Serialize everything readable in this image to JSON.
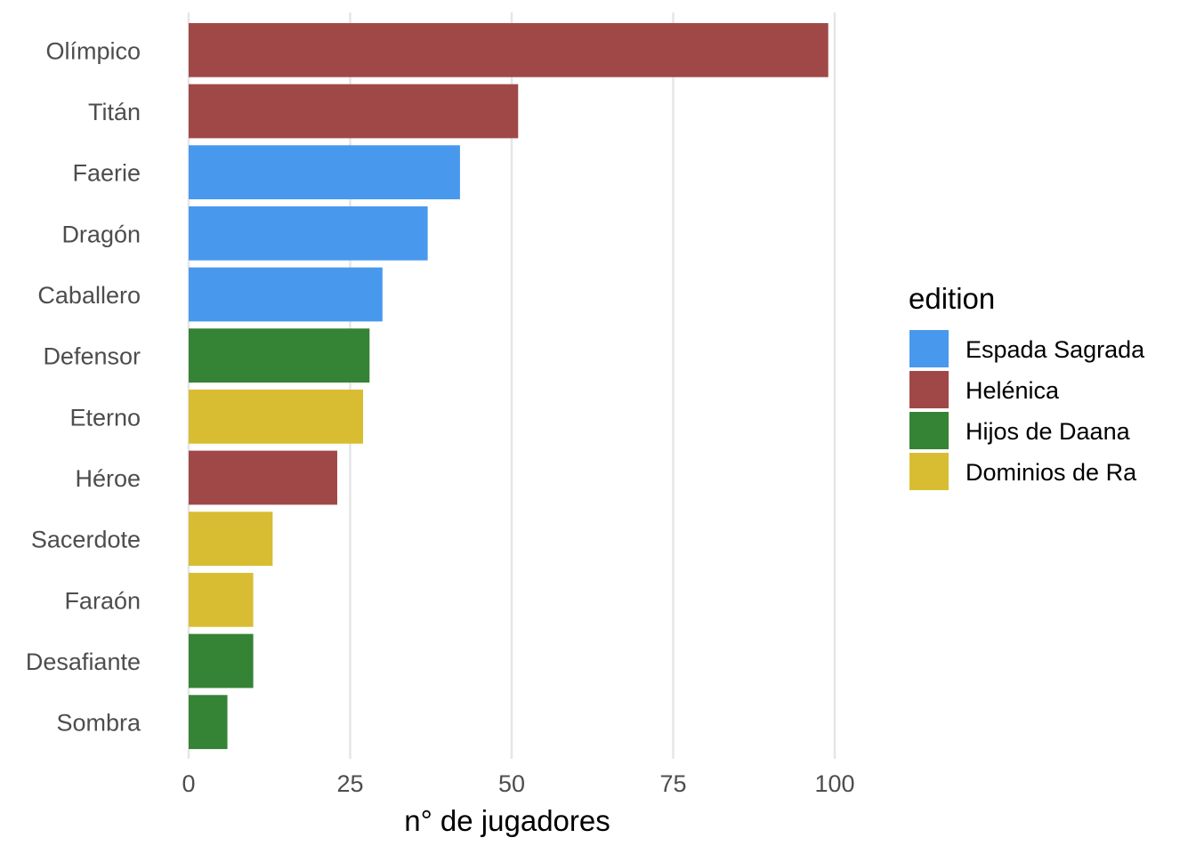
{
  "chart_data": {
    "type": "bar",
    "orientation": "horizontal",
    "categories": [
      "Olímpico",
      "Titán",
      "Faerie",
      "Dragón",
      "Caballero",
      "Defensor",
      "Eterno",
      "Héroe",
      "Sacerdote",
      "Faraón",
      "Desafiante",
      "Sombra"
    ],
    "values": [
      99,
      51,
      42,
      37,
      30,
      28,
      27,
      23,
      13,
      10,
      10,
      6
    ],
    "editions": [
      "Helénica",
      "Helénica",
      "Espada Sagrada",
      "Espada Sagrada",
      "Espada Sagrada",
      "Hijos de Daana",
      "Dominios de Ra",
      "Helénica",
      "Dominios de Ra",
      "Dominios de Ra",
      "Hijos de Daana",
      "Hijos de Daana"
    ],
    "xlabel": "n° de jugadores",
    "ylabel": "",
    "xlim": [
      0,
      100
    ],
    "xticks": [
      0,
      25,
      50,
      75,
      100
    ],
    "grid": true,
    "legend": {
      "title": "edition",
      "position": "right",
      "entries": [
        {
          "name": "Espada Sagrada",
          "color": "#4899ee"
        },
        {
          "name": "Helénica",
          "color": "#a04848"
        },
        {
          "name": "Hijos de Daana",
          "color": "#358335"
        },
        {
          "name": "Dominios de Ra",
          "color": "#d8bd32"
        }
      ]
    }
  }
}
